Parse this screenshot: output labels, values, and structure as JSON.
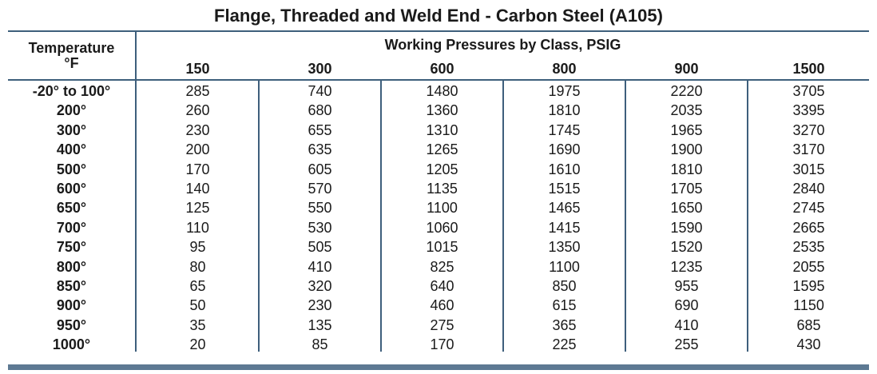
{
  "title": "Flange, Threaded and Weld End - Carbon Steel (A105)",
  "header": {
    "temperature_label": "Temperature",
    "temperature_unit": "°F",
    "group_label": "Working Pressures by Class, PSIG",
    "classes": [
      "150",
      "300",
      "600",
      "800",
      "900",
      "1500"
    ]
  },
  "rows": [
    {
      "temp": "-20° to 100°",
      "values": [
        "285",
        "740",
        "1480",
        "1975",
        "2220",
        "3705"
      ]
    },
    {
      "temp": "200°",
      "values": [
        "260",
        "680",
        "1360",
        "1810",
        "2035",
        "3395"
      ]
    },
    {
      "temp": "300°",
      "values": [
        "230",
        "655",
        "1310",
        "1745",
        "1965",
        "3270"
      ]
    },
    {
      "temp": "400°",
      "values": [
        "200",
        "635",
        "1265",
        "1690",
        "1900",
        "3170"
      ]
    },
    {
      "temp": "500°",
      "values": [
        "170",
        "605",
        "1205",
        "1610",
        "1810",
        "3015"
      ]
    },
    {
      "temp": "600°",
      "values": [
        "140",
        "570",
        "1135",
        "1515",
        "1705",
        "2840"
      ]
    },
    {
      "temp": "650°",
      "values": [
        "125",
        "550",
        "1100",
        "1465",
        "1650",
        "2745"
      ]
    },
    {
      "temp": "700°",
      "values": [
        "110",
        "530",
        "1060",
        "1415",
        "1590",
        "2665"
      ]
    },
    {
      "temp": "750°",
      "values": [
        "95",
        "505",
        "1015",
        "1350",
        "1520",
        "2535"
      ]
    },
    {
      "temp": "800°",
      "values": [
        "80",
        "410",
        "825",
        "1100",
        "1235",
        "2055"
      ]
    },
    {
      "temp": "850°",
      "values": [
        "65",
        "320",
        "640",
        "850",
        "955",
        "1595"
      ]
    },
    {
      "temp": "900°",
      "values": [
        "50",
        "230",
        "460",
        "615",
        "690",
        "1150"
      ]
    },
    {
      "temp": "950°",
      "values": [
        "35",
        "135",
        "275",
        "365",
        "410",
        "685"
      ]
    },
    {
      "temp": "1000°",
      "values": [
        "20",
        "85",
        "170",
        "225",
        "255",
        "430"
      ]
    }
  ],
  "colors": {
    "rule": "#3e5f7c",
    "footer_bar": "#5d7993",
    "text": "#1a1a1a"
  }
}
